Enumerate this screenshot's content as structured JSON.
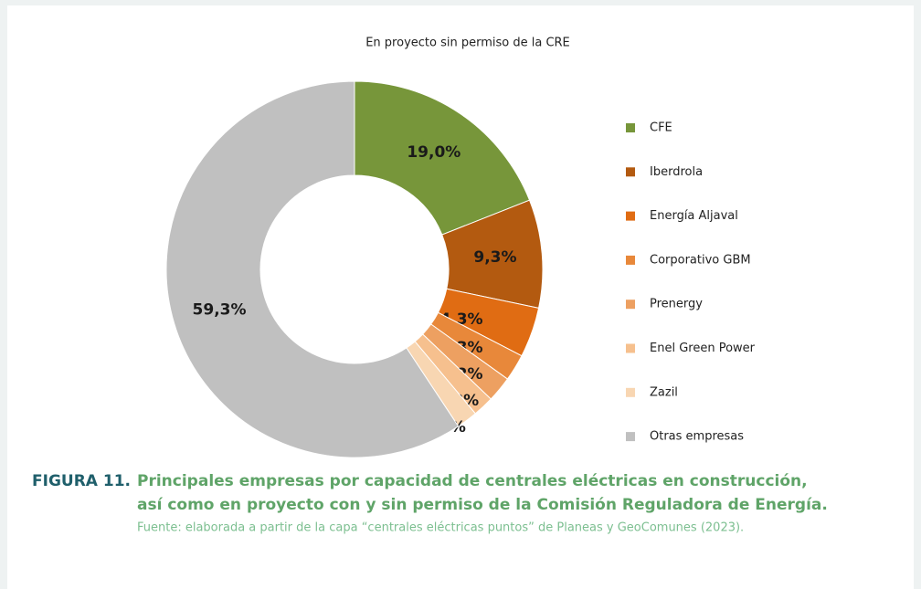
{
  "chart_data": {
    "type": "donut",
    "title": "En proyecto sin permiso de la CRE",
    "categories": [
      "CFE",
      "Iberdrola",
      "Energía Aljaval",
      "Corporativo GBM",
      "Prenergy",
      "Enel Green Power",
      "Zazil",
      "Otras empresas"
    ],
    "values": [
      19.0,
      9.3,
      4.3,
      2.3,
      2.2,
      1.8,
      1.8,
      59.3
    ],
    "value_labels": [
      "19,0%",
      "9,3%",
      "4,3%",
      "2,3%",
      "2,2%",
      "1,8%",
      "1,8%",
      "59,3%"
    ],
    "colors": [
      "#77963a",
      "#b35a10",
      "#e06c13",
      "#e8883a",
      "#eda061",
      "#f6c08e",
      "#f8d6b2",
      "#c0c0c0"
    ],
    "legend": "right"
  },
  "caption": {
    "label": "FIGURA 11.",
    "lines": [
      "Principales empresas por capacidad de centrales eléctricas en construcción,",
      "así como en proyecto con y sin permiso de la Comisión Reguladora de Energía."
    ],
    "source": "Fuente: elaborada a partir de la capa “centrales eléctricas puntos” de Planeas y GeoComunes (2023)."
  }
}
